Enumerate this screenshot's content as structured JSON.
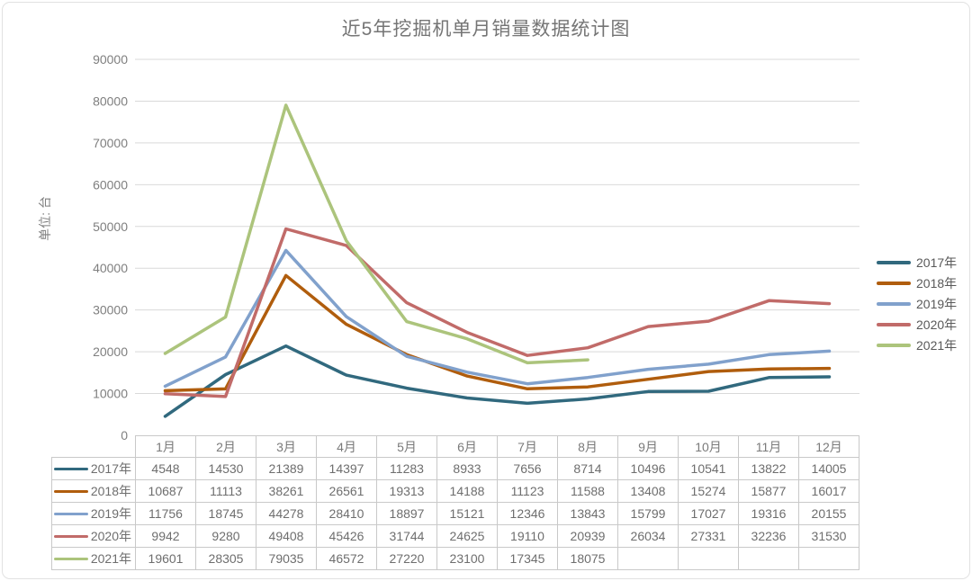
{
  "title": "近5年挖掘机单月销量数据统计图",
  "chart_data": {
    "type": "line",
    "title": "近5年挖掘机单月销量数据统计图",
    "ylabel": "单位: 台",
    "xlabel": "",
    "categories": [
      "1月",
      "2月",
      "3月",
      "4月",
      "5月",
      "6月",
      "7月",
      "8月",
      "9月",
      "10月",
      "11月",
      "12月"
    ],
    "series": [
      {
        "name": "2017年",
        "color": "#31697e",
        "values": [
          4548,
          14530,
          21389,
          14397,
          11283,
          8933,
          7656,
          8714,
          10496,
          10541,
          13822,
          14005
        ]
      },
      {
        "name": "2018年",
        "color": "#b05d0d",
        "values": [
          10687,
          11113,
          38261,
          26561,
          19313,
          14188,
          11123,
          11588,
          13408,
          15274,
          15877,
          16017
        ]
      },
      {
        "name": "2019年",
        "color": "#81a1cc",
        "values": [
          11756,
          18745,
          44278,
          28410,
          18897,
          15121,
          12346,
          13843,
          15799,
          17027,
          19316,
          20155
        ]
      },
      {
        "name": "2020年",
        "color": "#c16b69",
        "values": [
          9942,
          9280,
          49408,
          45426,
          31744,
          24625,
          19110,
          20939,
          26034,
          27331,
          32236,
          31530
        ]
      },
      {
        "name": "2021年",
        "color": "#acc47c",
        "values": [
          19601,
          28305,
          79035,
          46572,
          27220,
          23100,
          17345,
          18075,
          null,
          null,
          null,
          null
        ]
      }
    ],
    "ylim": [
      0,
      90000
    ],
    "ytick_step": 10000,
    "yticks": [
      0,
      10000,
      20000,
      30000,
      40000,
      50000,
      60000,
      70000,
      80000,
      90000
    ],
    "grid": true,
    "legend_position": "right",
    "colors": {
      "grid": "#d9d9d9",
      "tick_text": "#7f7f7f",
      "title_text": "#757575",
      "table_border": "#c9c9c9",
      "table_text": "#6e6e6e",
      "legend_text": "#595959"
    }
  }
}
